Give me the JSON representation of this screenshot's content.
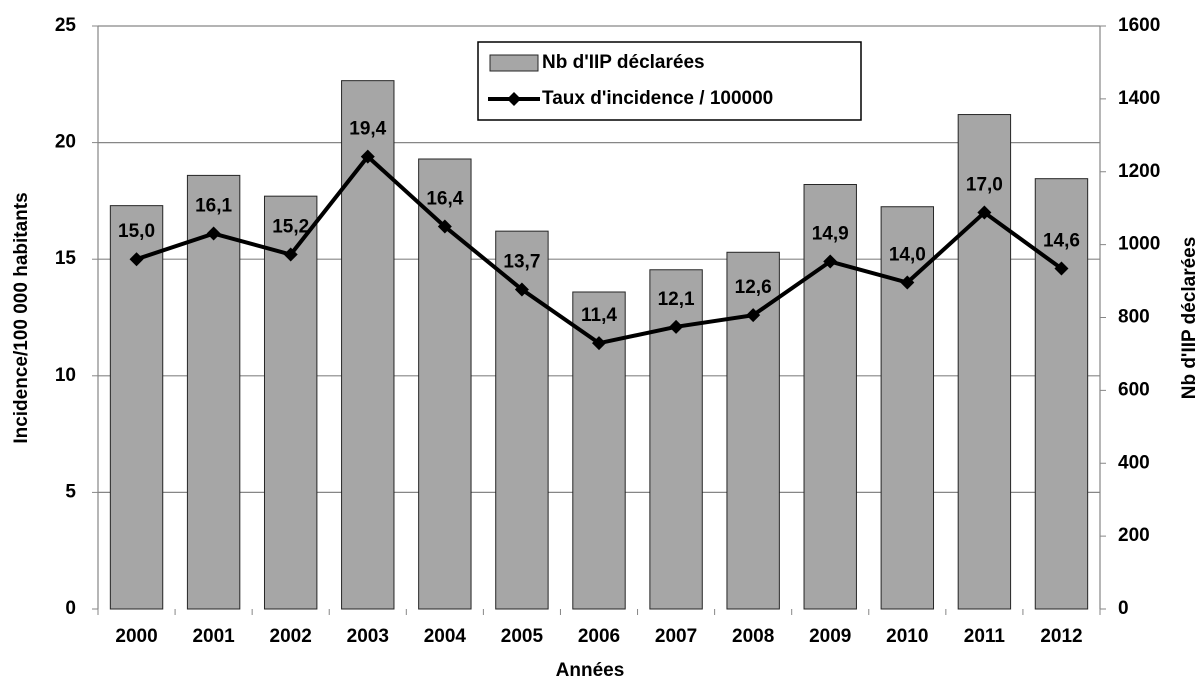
{
  "chart_data": {
    "type": "bar-line",
    "categories": [
      "2000",
      "2001",
      "2002",
      "2003",
      "2004",
      "2005",
      "2006",
      "2007",
      "2008",
      "2009",
      "2010",
      "2011",
      "2012"
    ],
    "series": [
      {
        "name": "Nb d'IIP déclarées",
        "type": "bar",
        "axis": "y2",
        "color": "#a6a6a6",
        "values": [
          1107,
          1190,
          1133,
          1450,
          1235,
          1037,
          870,
          931,
          979,
          1165,
          1104,
          1357,
          1181
        ]
      },
      {
        "name": "Taux d'incidence  / 100000",
        "type": "line",
        "axis": "y",
        "color": "#000000",
        "values": [
          15.0,
          16.1,
          15.2,
          19.4,
          16.4,
          13.7,
          11.4,
          12.1,
          12.6,
          14.9,
          14.0,
          17.0,
          14.6
        ],
        "value_labels": [
          "15,0",
          "16,1",
          "15,2",
          "19,4",
          "16,4",
          "13,7",
          "11,4",
          "12,1",
          "12,6",
          "14,9",
          "14,0",
          "17,0",
          "14,6"
        ]
      }
    ],
    "x_label": "Années",
    "y_label": "Incidence/100 000 habitants",
    "y2_label": "Nb d'IIP déclarées",
    "ylim": [
      0,
      25
    ],
    "yticks": [
      0,
      5,
      10,
      15,
      20,
      25
    ],
    "y2lim": [
      0,
      1600
    ],
    "y2ticks": [
      0,
      200,
      400,
      600,
      800,
      1000,
      1200,
      1400,
      1600
    ],
    "grid": true,
    "legend": "top"
  }
}
